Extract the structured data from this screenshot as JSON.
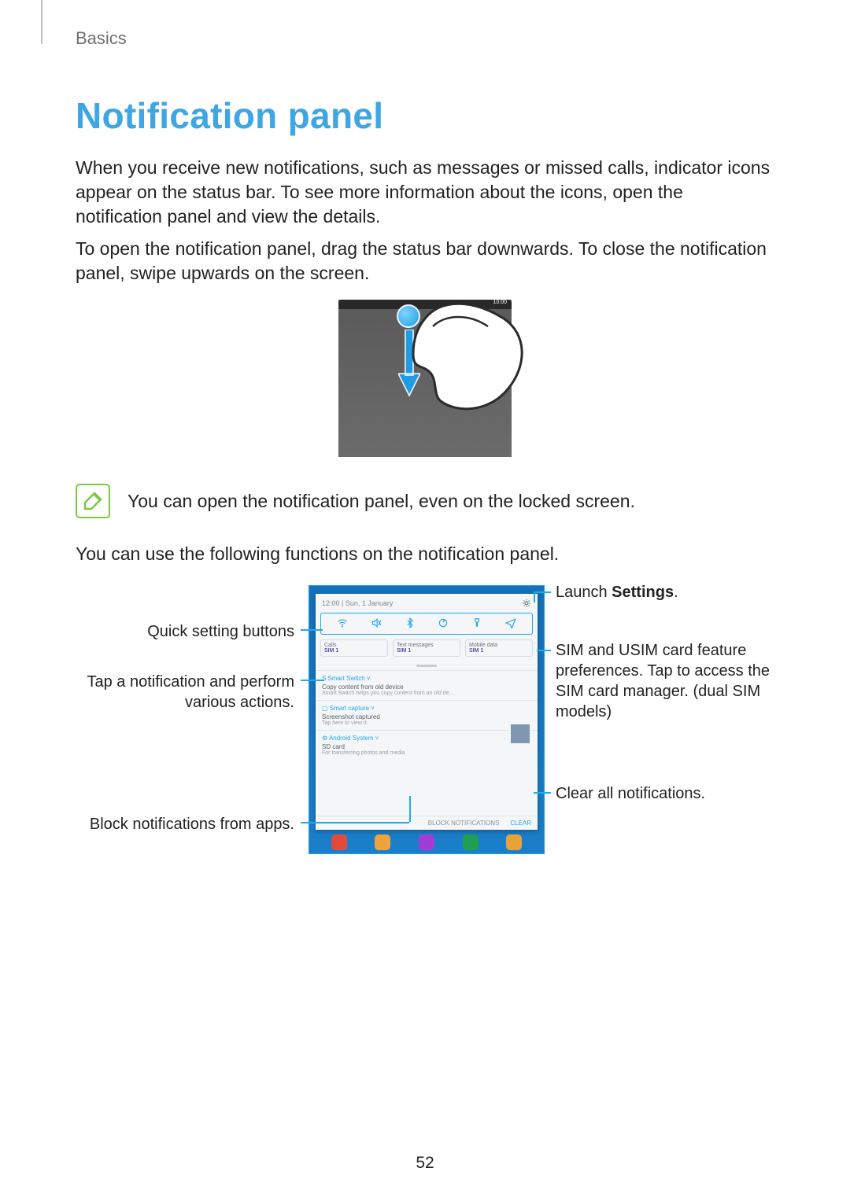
{
  "breadcrumb": "Basics",
  "title": "Notification panel",
  "para1": "When you receive new notifications, such as messages or missed calls, indicator icons appear on the status bar. To see more information about the icons, open the notification panel and view the details.",
  "para2": "To open the notification panel, drag the status bar downwards. To close the notification panel, swipe upwards on the screen.",
  "note": "You can open the notification panel, even on the locked screen.",
  "lead": "You can use the following functions on the notification panel.",
  "phone_clock": "10:00",
  "panel": {
    "time_date": "12:00  |  Sun, 1 January",
    "sim_calls": "Calls",
    "sim_texts": "Text messages",
    "sim_data": "Mobile data",
    "sim_sub": "SIM 1",
    "n1_app": "S  Smart Switch  ˅",
    "n1_t1": "Copy content from old device",
    "n1_t2": "Smart Switch helps you copy content from an old de…",
    "n2_app": "▢  Smart capture  ˅",
    "n2_t1": "Screenshot captured",
    "n2_t2": "Tap here to view it.",
    "n3_app": "⚙  Android System  ˅",
    "n3_t1": "SD card",
    "n3_t2": "For transferring photos and media",
    "footer_block": "BLOCK NOTIFICATIONS",
    "footer_clear": "CLEAR"
  },
  "callouts": {
    "quick": "Quick setting buttons",
    "tap1": "Tap a notification and perform",
    "tap2": "various actions.",
    "block": "Block notifications from apps.",
    "launch_pre": "Launch ",
    "launch_b": "Settings",
    "launch_post": ".",
    "sim1": "SIM and USIM card feature",
    "sim2": "preferences. Tap to access the",
    "sim3": "SIM card manager. (dual SIM",
    "sim4": "models)",
    "clear": "Clear all notifications."
  },
  "dock_colors": [
    "#e24b3b",
    "#f0a23c",
    "#a43bd6",
    "#1fa050",
    "#e8a23a"
  ],
  "page_number": "52",
  "colors": {
    "accent": "#3fa6e4",
    "leader": "#22a7f0",
    "note_border": "#7ac943"
  }
}
